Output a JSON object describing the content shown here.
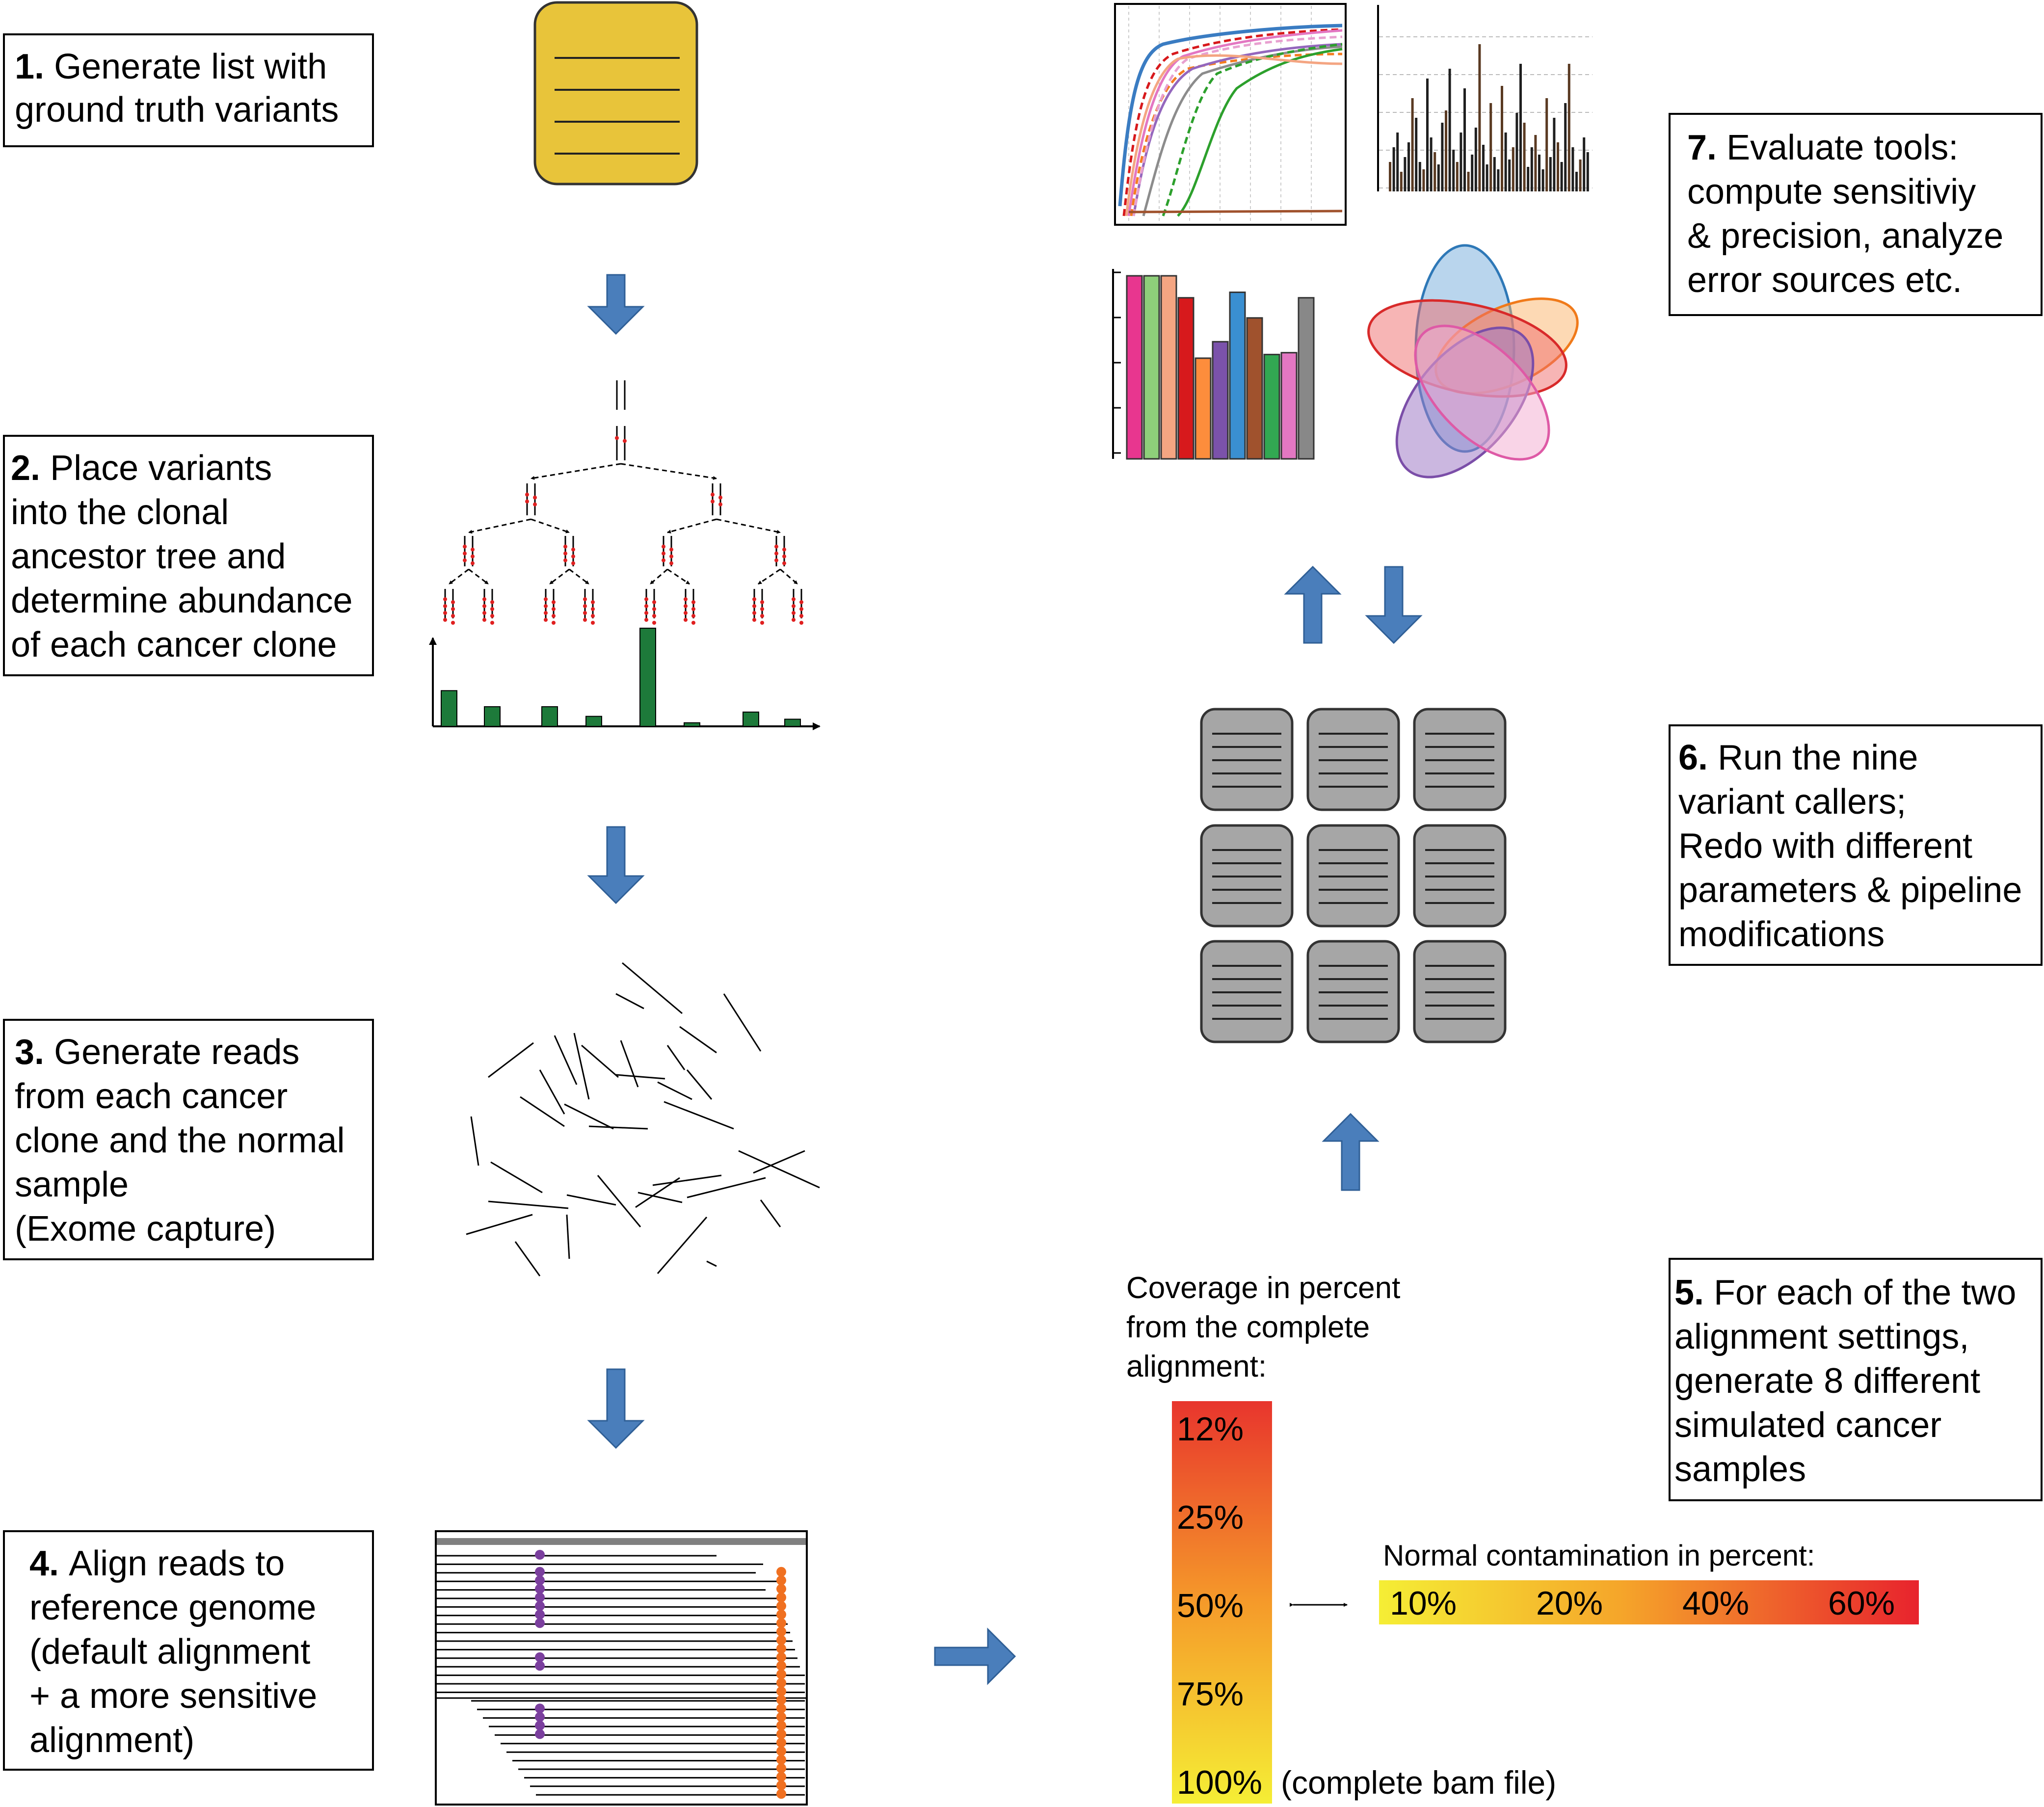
{
  "steps": [
    {
      "num": "1.",
      "lines": [
        "Generate list with",
        "ground truth variants"
      ]
    },
    {
      "num": "2.",
      "lines": [
        "Place variants",
        "into the clonal",
        "ancestor tree and",
        "determine abundance",
        "of each cancer clone"
      ]
    },
    {
      "num": "3.",
      "lines": [
        "Generate reads",
        "from each cancer",
        "clone and the normal",
        "sample",
        "(Exome capture)"
      ]
    },
    {
      "num": "4.",
      "lines": [
        "Align reads to",
        "reference genome",
        "(default alignment",
        "+ a more sensitive",
        "alignment)"
      ]
    },
    {
      "num": "5.",
      "lines": [
        "For each of the two",
        "alignment settings,",
        "generate 8 different",
        "simulated cancer",
        "samples"
      ]
    },
    {
      "num": "6.",
      "lines": [
        "Run the nine",
        "variant callers;",
        "Redo with different",
        "parameters & pipeline",
        "modifications"
      ]
    },
    {
      "num": "7.",
      "lines": [
        "Evaluate tools:",
        "compute sensitiviy",
        "& precision, analyze",
        "error sources etc."
      ]
    }
  ],
  "coverage": {
    "title_lines": [
      "Coverage in percent",
      "from the complete",
      "alignment:"
    ],
    "levels": [
      "12%",
      "25%",
      "50%",
      "75%",
      "100%"
    ],
    "note": "(complete bam file)"
  },
  "contamination": {
    "title": "Normal contamination in percent:",
    "levels": [
      "10%",
      "20%",
      "40%",
      "60%"
    ]
  },
  "clone_abundance_values": [
    1.0,
    0.55,
    0.55,
    0.28,
    2.75,
    0.1,
    0.4,
    0.2
  ],
  "summary_bar_values": [
    1.0,
    1.0,
    1.0,
    0.88,
    0.55,
    0.64,
    0.91,
    0.77,
    0.57,
    0.58,
    0.88
  ],
  "summary_bar_colors": [
    "#e8368f",
    "#8ecf7a",
    "#f4a582",
    "#d7191c",
    "#fd8d3c",
    "#7b52ab",
    "#3a8fd1",
    "#a0522d",
    "#32a852",
    "#e377c2",
    "#888888"
  ],
  "colors": {
    "arrow_fill": "#4a7ebb",
    "arrow_stroke": "#2f5f96",
    "variant_list": "#e8c43a",
    "server": "#a6a6a6",
    "clone_bar": "#1d7a3a",
    "mutation_red": "#e02020",
    "variant_purple": "#7b3f9e",
    "variant_orange": "#f07020"
  }
}
